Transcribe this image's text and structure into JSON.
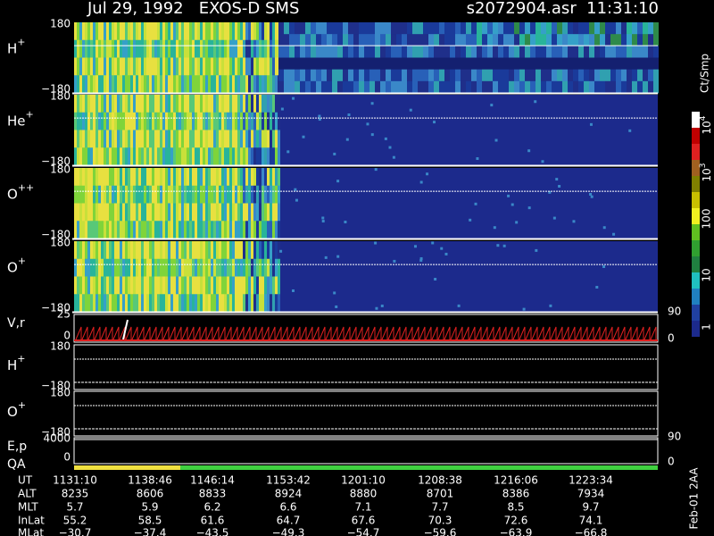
{
  "header": {
    "title": "Jul 29, 1992   EXOS-D SMS",
    "file": "s2072904.asr  11:31:10"
  },
  "panels": [
    {
      "ion": "H",
      "charge": "+",
      "ticks": [
        "180",
        "−180"
      ]
    },
    {
      "ion": "He",
      "charge": "+",
      "ticks": [
        "180",
        "−180"
      ]
    },
    {
      "ion": "O",
      "charge": "++",
      "ticks": [
        "180",
        "−180"
      ]
    },
    {
      "ion": "O",
      "charge": "+",
      "ticks": [
        "180",
        "−180"
      ]
    }
  ],
  "velocity": {
    "label": "V,r",
    "ticks": [
      "25",
      "0"
    ],
    "right_ticks": [
      "90",
      "0"
    ]
  },
  "lower_panels": [
    {
      "ion": "H",
      "charge": "+",
      "ticks": [
        "180",
        "−180"
      ]
    },
    {
      "ion": "O",
      "charge": "+",
      "ticks": [
        "180",
        "−180"
      ]
    }
  ],
  "energy": {
    "label": "E,p",
    "ticks": [
      "4000",
      "0"
    ],
    "right_ticks": [
      "90",
      "0"
    ]
  },
  "qa_label": "QA",
  "colorbar": {
    "unit": "Ct/Smp",
    "labels": [
      {
        "base": "10",
        "exp": "4"
      },
      {
        "base": "10",
        "exp": "3"
      },
      "100",
      "10",
      "1"
    ]
  },
  "table": {
    "rows": [
      {
        "label": "UT",
        "values": [
          "1131:10",
          "1138:46",
          "1146:14",
          "1153:42",
          "1201:10",
          "1208:38",
          "1216:06",
          "1223:34"
        ]
      },
      {
        "label": "ALT",
        "values": [
          "8235",
          "8606",
          "8833",
          "8924",
          "8880",
          "8701",
          "8386",
          "7934"
        ]
      },
      {
        "label": "MLT",
        "values": [
          "5.7",
          "5.9",
          "6.2",
          "6.6",
          "7.1",
          "7.7",
          "8.5",
          "9.7"
        ]
      },
      {
        "label": "InLat",
        "values": [
          "55.2",
          "58.5",
          "61.6",
          "64.7",
          "67.6",
          "70.3",
          "72.6",
          "74.1"
        ]
      },
      {
        "label": "MLat",
        "values": [
          "−30.7",
          "−37.4",
          "−43.5",
          "−49.3",
          "−54.7",
          "−59.6",
          "−63.9",
          "−66.8"
        ]
      }
    ]
  },
  "footer": "Feb-01 2AA"
}
